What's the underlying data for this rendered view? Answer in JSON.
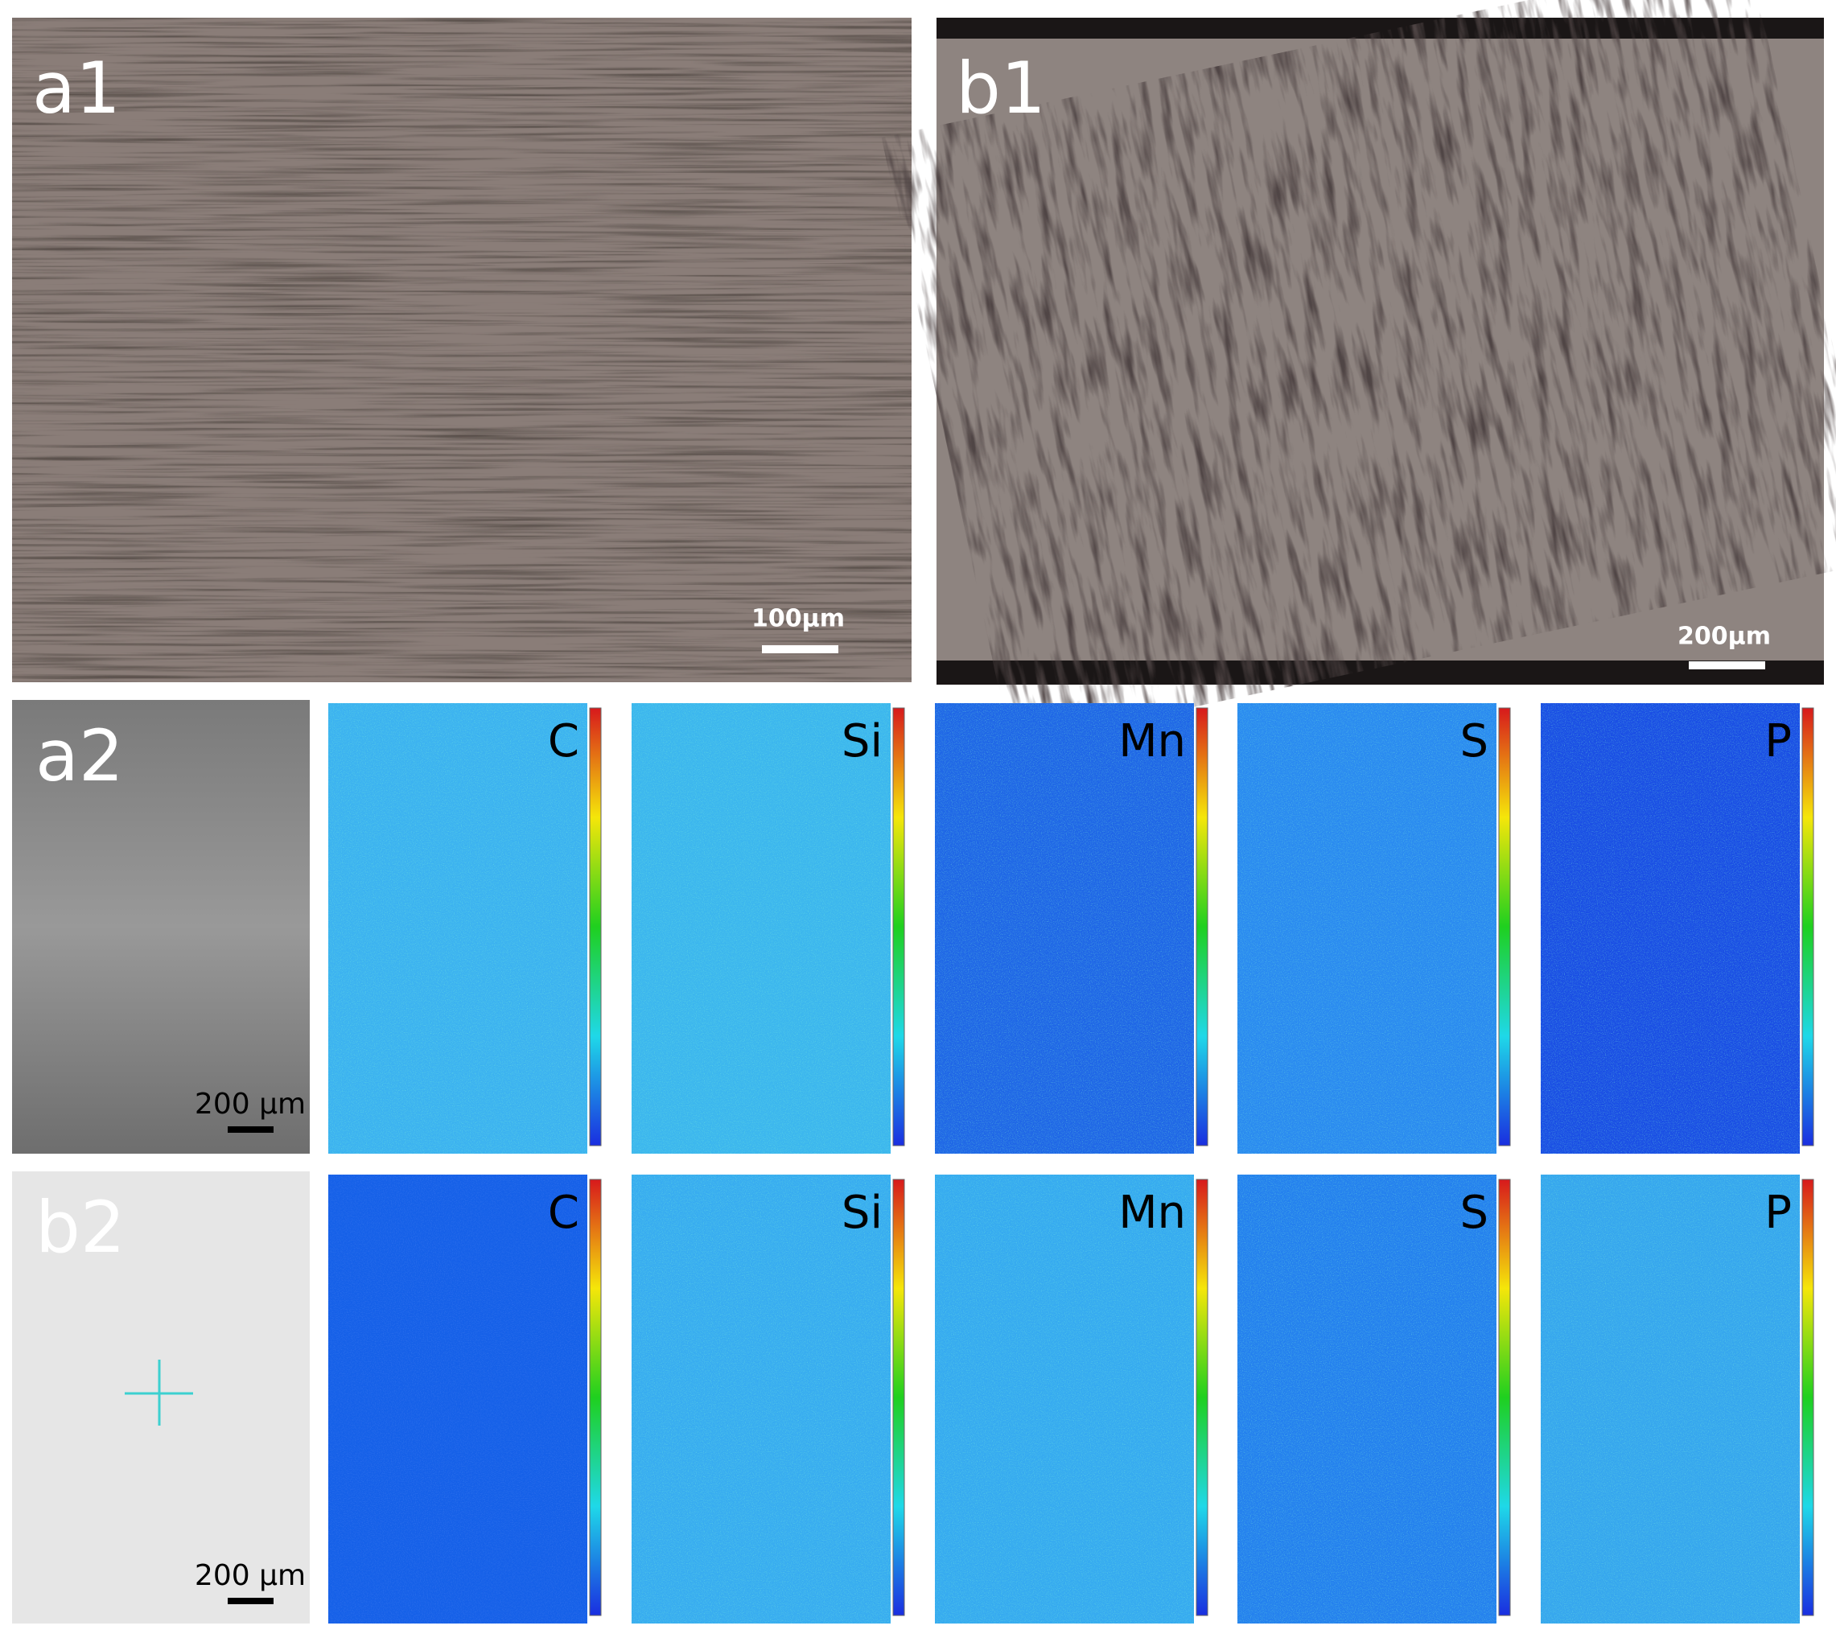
{
  "panels": {
    "a1": {
      "label": "a1",
      "scale_bar": "100µm"
    },
    "b1": {
      "label": "b1",
      "scale_bar": "200µm"
    }
  },
  "rows": [
    {
      "label": "a2",
      "scale_bar": "200 µm",
      "maps": [
        "C",
        "Si",
        "Mn",
        "S",
        "P"
      ]
    },
    {
      "label": "b2",
      "scale_bar": "200 µm",
      "maps": [
        "C",
        "Si",
        "Mn",
        "S",
        "P"
      ]
    }
  ]
}
